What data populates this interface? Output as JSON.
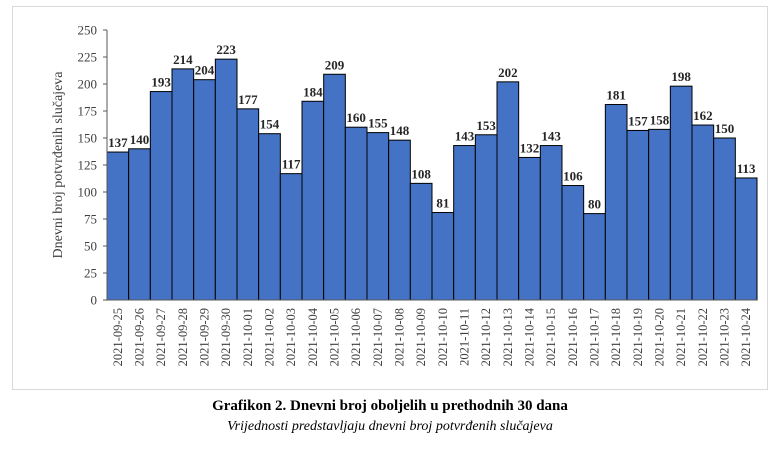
{
  "caption": {
    "title": "Grafikon 2. Dnevni broj oboljelih u prethodnih 30 dana",
    "subtitle": "Vrijednosti predstavljaju dnevni broj potvrđenih slučajeva"
  },
  "chart_data": {
    "type": "bar",
    "ylabel": "Dnevni broj potvrđenih slučajeva",
    "ylim": [
      0,
      250
    ],
    "yticks": [
      0,
      25,
      50,
      75,
      100,
      125,
      150,
      175,
      200,
      225,
      250
    ],
    "grid": false,
    "legend": "none",
    "bar_color": "#4472c4",
    "bar_edge_color": "#000000",
    "categories": [
      "2021-09-25",
      "2021-09-26",
      "2021-09-27",
      "2021-09-28",
      "2021-09-29",
      "2021-09-30",
      "2021-10-01",
      "2021-10-02",
      "2021-10-03",
      "2021-10-04",
      "2021-10-05",
      "2021-10-06",
      "2021-10-07",
      "2021-10-08",
      "2021-10-09",
      "2021-10-10",
      "2021-10-11",
      "2021-10-12",
      "2021-10-13",
      "2021-10-14",
      "2021-10-15",
      "2021-10-16",
      "2021-10-17",
      "2021-10-18",
      "2021-10-19",
      "2021-10-20",
      "2021-10-21",
      "2021-10-22",
      "2021-10-23",
      "2021-10-24"
    ],
    "values": [
      137,
      140,
      193,
      214,
      204,
      223,
      177,
      154,
      117,
      184,
      209,
      160,
      155,
      148,
      108,
      81,
      143,
      153,
      202,
      132,
      143,
      106,
      80,
      181,
      157,
      158,
      198,
      162,
      150,
      113
    ]
  }
}
